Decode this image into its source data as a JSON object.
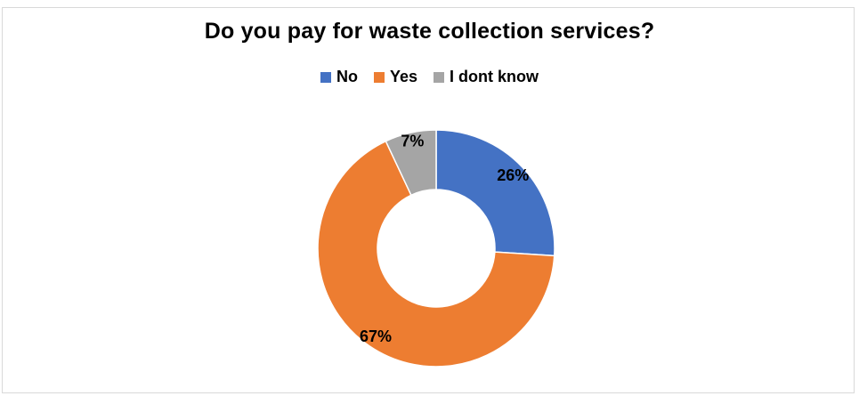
{
  "chart_data": {
    "type": "pie",
    "variant": "donut",
    "title": "Do you pay for waste collection services?",
    "legend_position": "top",
    "categories": [
      "No",
      "Yes",
      "I dont know"
    ],
    "values": [
      26,
      67,
      7
    ],
    "labels": [
      "26%",
      "67%",
      "7%"
    ],
    "colors": [
      "#4472C4",
      "#ED7D31",
      "#A5A5A5"
    ]
  }
}
